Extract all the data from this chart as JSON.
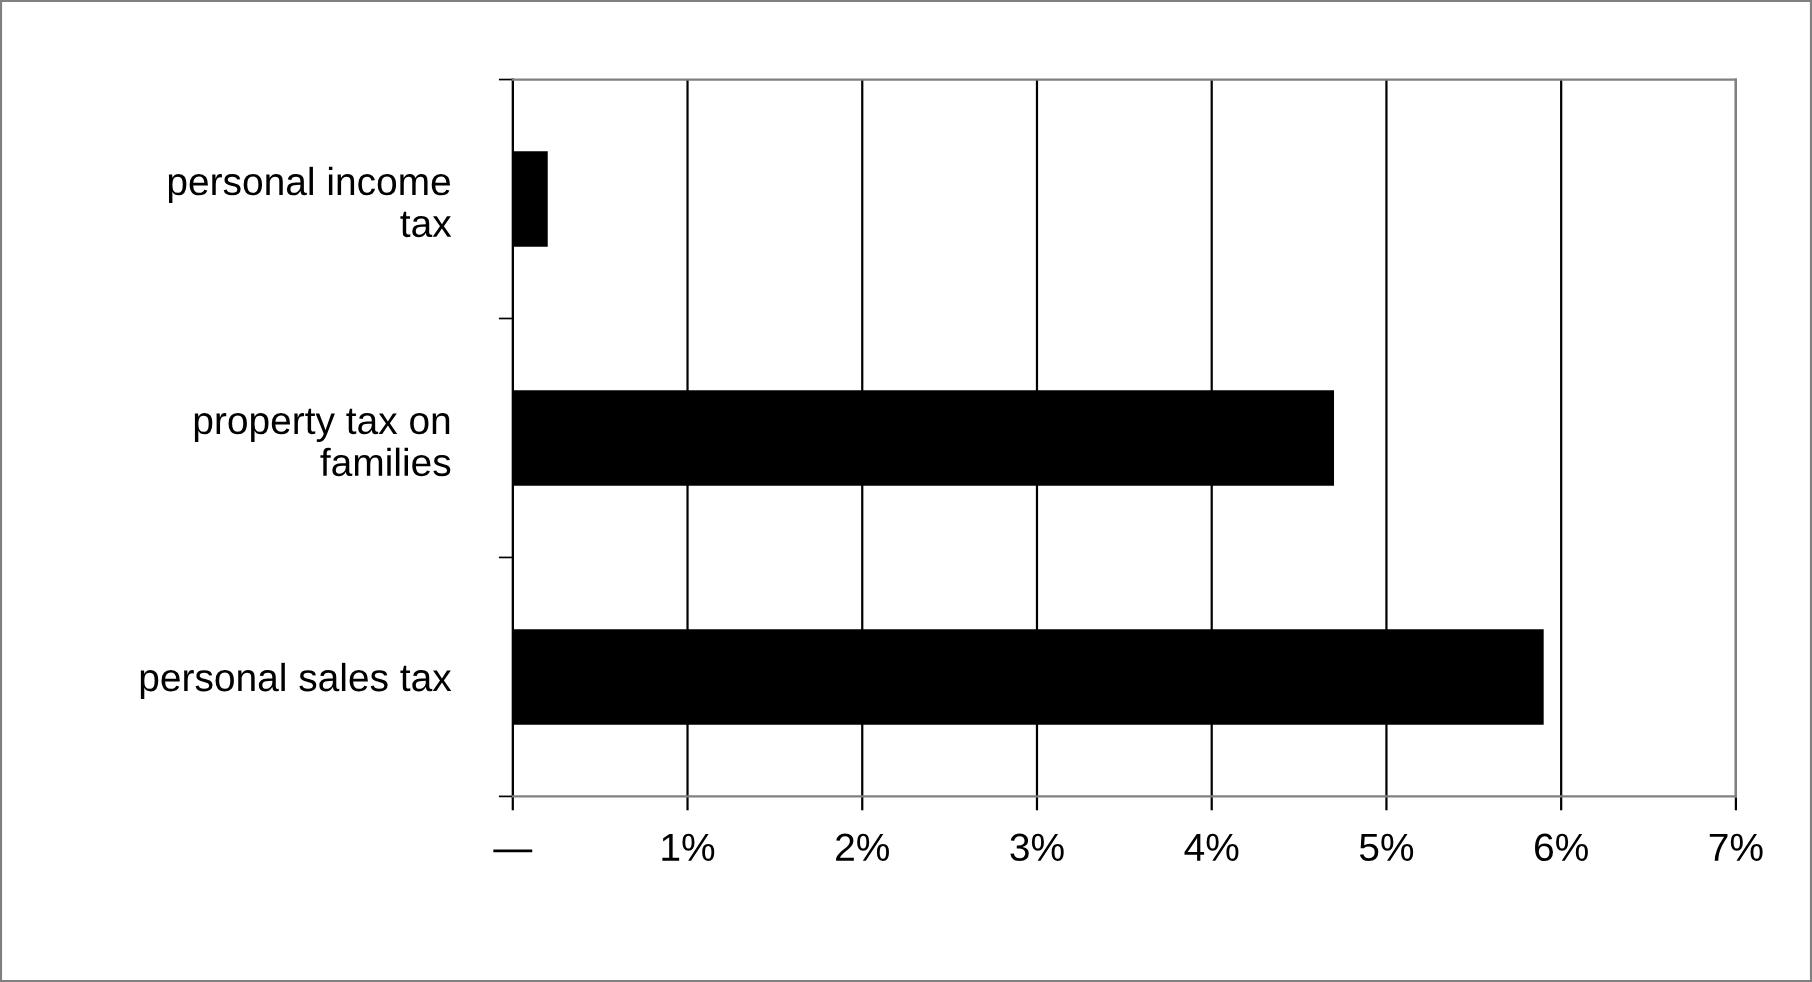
{
  "chart_data": {
    "type": "bar",
    "orientation": "horizontal",
    "categories": [
      "personal income\ntax",
      "property tax on\nfamilies",
      "personal sales tax"
    ],
    "values": [
      0.2,
      4.7,
      5.9
    ],
    "color": "#000000",
    "xlim": [
      0,
      7
    ],
    "xticks": [
      {
        "value": 0,
        "label": "—"
      },
      {
        "value": 1,
        "label": "1%"
      },
      {
        "value": 2,
        "label": "2%"
      },
      {
        "value": 3,
        "label": "3%"
      },
      {
        "value": 4,
        "label": "4%"
      },
      {
        "value": 5,
        "label": "5%"
      },
      {
        "value": 6,
        "label": "6%"
      },
      {
        "value": 7,
        "label": "7%"
      }
    ],
    "grid": "x"
  }
}
